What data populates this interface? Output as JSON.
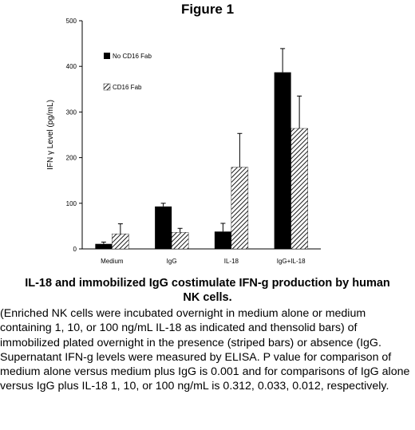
{
  "figure_title": "Figure 1",
  "caption": {
    "title": "IL-18 and immobilized IgG costimulate IFN-g production by human NK cells.",
    "body": "(Enriched NK cells were incubated overnight in medium alone or medium containing 1, 10, or 100 ng/mL IL-18 as indicated and thensolid bars) of immobilized plated overnight in the presence (striped bars) or absence (IgG. Supernatant IFN-g levels were measured by ELISA. P value for comparison of medium alone versus medium plus IgG is 0.001 and for comparisons of IgG alone versus IgG plus IL-18 1, 10, or 100 ng/mL is 0.312, 0.033, 0.012, respectively."
  },
  "chart_data": {
    "type": "bar",
    "title": "",
    "xlabel": "",
    "ylabel": "IFN γ Level (pg/mL)",
    "ylim": [
      0,
      500
    ],
    "yticks": [
      0,
      100,
      200,
      300,
      400,
      500
    ],
    "categories": [
      "Medium",
      "IgG",
      "IL-18",
      "IgG+IL-18"
    ],
    "series": [
      {
        "name": "No CD16 Fab",
        "fill": "solid",
        "color": "#000000",
        "values": [
          11,
          93,
          38,
          387
        ],
        "errors": [
          4,
          7,
          18,
          52
        ]
      },
      {
        "name": "CD16 Fab",
        "fill": "striped",
        "color": "#000000",
        "values": [
          33,
          36,
          179,
          264
        ],
        "errors": [
          22,
          9,
          74,
          71
        ]
      }
    ],
    "legend_position": "top-left",
    "grid": false
  }
}
